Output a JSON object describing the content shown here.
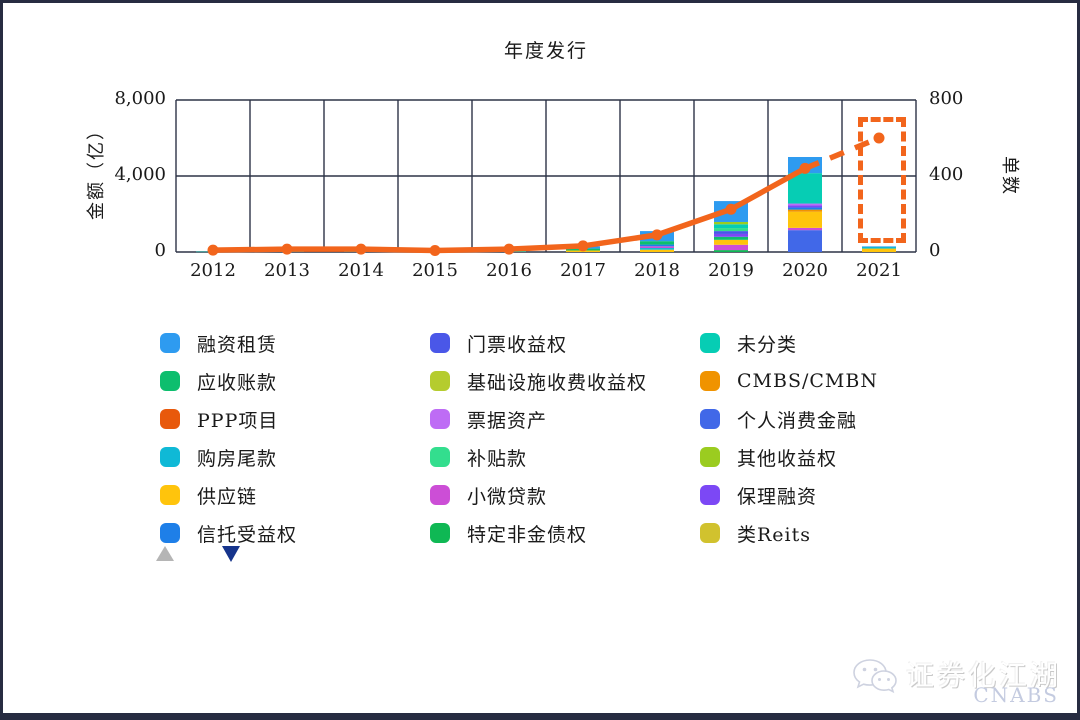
{
  "page": {
    "background": "#ffffff",
    "frame_border_color": "#272c41"
  },
  "chart_data": {
    "type": "bar",
    "subtype": "stacked-bars-with-line-overlay",
    "title": "年度发行",
    "ylabel_left": "金额（亿）",
    "ylabel_right": "单数",
    "x": [
      "2012",
      "2013",
      "2014",
      "2015",
      "2016",
      "2017",
      "2018",
      "2019",
      "2020",
      "2021"
    ],
    "left_axis": {
      "label": "金额（亿）",
      "ticks": [
        0,
        4000,
        8000
      ],
      "tick_labels": [
        "0",
        "4,000",
        "8,000"
      ],
      "max": 8000
    },
    "right_axis": {
      "label": "单数",
      "ticks": [
        0,
        400,
        800
      ],
      "tick_labels": [
        "0",
        "400",
        "800"
      ],
      "max": 800
    },
    "grid": "on",
    "grid_color": "#2d3347",
    "line_series": {
      "name": "单数",
      "axis": "right",
      "color": "#f2651c",
      "values": [
        10,
        15,
        15,
        8,
        15,
        32,
        90,
        225,
        440,
        600
      ],
      "dashed_from_index": 8,
      "markers": true
    },
    "bars": [
      {
        "year": "2012",
        "total": 20,
        "stack": [
          {
            "category": "未分类",
            "value": 20
          }
        ]
      },
      {
        "year": "2013",
        "total": 30,
        "stack": [
          {
            "category": "未分类",
            "value": 30
          }
        ]
      },
      {
        "year": "2014",
        "total": 35,
        "stack": [
          {
            "category": "未分类",
            "value": 35
          }
        ]
      },
      {
        "year": "2015",
        "total": 25,
        "stack": [
          {
            "category": "未分类",
            "value": 25
          }
        ]
      },
      {
        "year": "2016",
        "total": 40,
        "stack": [
          {
            "category": "未分类",
            "value": 40
          }
        ]
      },
      {
        "year": "2017",
        "total": 300,
        "stack": [
          {
            "category": "供应链",
            "value": 80
          },
          {
            "category": "应收账款",
            "value": 100
          },
          {
            "category": "融资租赁",
            "value": 120
          }
        ]
      },
      {
        "year": "2018",
        "total": 1100,
        "stack": [
          {
            "category": "供应链",
            "value": 120
          },
          {
            "category": "购房尾款",
            "value": 90
          },
          {
            "category": "小微贷款",
            "value": 90
          },
          {
            "category": "信托受益权",
            "value": 90
          },
          {
            "category": "应收账款",
            "value": 180
          },
          {
            "category": "融资租赁",
            "value": 530
          }
        ]
      },
      {
        "year": "2019",
        "total": 2680,
        "stack": [
          {
            "category": "特定非金债权",
            "value": 100
          },
          {
            "category": "小微贷款",
            "value": 280
          },
          {
            "category": "供应链",
            "value": 260
          },
          {
            "category": "应收账款",
            "value": 160
          },
          {
            "category": "保理融资",
            "value": 150
          },
          {
            "category": "门票收益权",
            "value": 150
          },
          {
            "category": "补贴款",
            "value": 160
          },
          {
            "category": "未分类",
            "value": 200
          },
          {
            "category": "其他收益权",
            "value": 120
          },
          {
            "category": "融资租赁",
            "value": 1100
          }
        ]
      },
      {
        "year": "2020",
        "total": 5000,
        "stack": [
          {
            "category": "个人消费金融",
            "value": 1150
          },
          {
            "category": "小微贷款",
            "value": 120
          },
          {
            "category": "供应链",
            "value": 850
          },
          {
            "category": "CMBS/CMBN",
            "value": 110
          },
          {
            "category": "信托受益权",
            "value": 110
          },
          {
            "category": "保理融资",
            "value": 110
          },
          {
            "category": "票据资产",
            "value": 100
          },
          {
            "category": "未分类",
            "value": 1600
          },
          {
            "category": "融资租赁",
            "value": 850
          }
        ]
      },
      {
        "year": "2021",
        "total": 300,
        "stack": [
          {
            "category": "供应链",
            "value": 180
          },
          {
            "category": "购房尾款",
            "value": 90
          },
          {
            "category": "融资租赁",
            "value": 30
          }
        ]
      }
    ],
    "highlight": {
      "year": "2021",
      "type": "dashed-box",
      "color": "#f2651c"
    },
    "legend_position": "bottom",
    "legend": [
      {
        "label": "融资租赁",
        "color": "#2e9bf0"
      },
      {
        "label": "应收账款",
        "color": "#0dbe6e"
      },
      {
        "label": "PPP项目",
        "color": "#e8590c"
      },
      {
        "label": "购房尾款",
        "color": "#0fb9d6"
      },
      {
        "label": "供应链",
        "color": "#ffc40c"
      },
      {
        "label": "信托受益权",
        "color": "#1e7fe8"
      },
      {
        "label": "门票收益权",
        "color": "#4a57e8"
      },
      {
        "label": "基础设施收费收益权",
        "color": "#b5cc2e"
      },
      {
        "label": "票据资产",
        "color": "#be6cf5"
      },
      {
        "label": "补贴款",
        "color": "#33de8e"
      },
      {
        "label": "小微贷款",
        "color": "#cc4ed6"
      },
      {
        "label": "特定非金债权",
        "color": "#0fb854"
      },
      {
        "label": "未分类",
        "color": "#06cdb4"
      },
      {
        "label": "CMBS/CMBN",
        "color": "#f09300"
      },
      {
        "label": "个人消费金融",
        "color": "#4168e8"
      },
      {
        "label": "其他收益权",
        "color": "#9bcc20"
      },
      {
        "label": "保理融资",
        "color": "#7c48f5"
      },
      {
        "label": "类Reits",
        "color": "#d1c22e"
      }
    ]
  },
  "legend_nav": {
    "up_color": "#b5b5b5",
    "down_color": "#16348c"
  },
  "watermark": {
    "brand": "证券化江湖",
    "sub": "CNABS",
    "icon": "wechat-icon"
  }
}
